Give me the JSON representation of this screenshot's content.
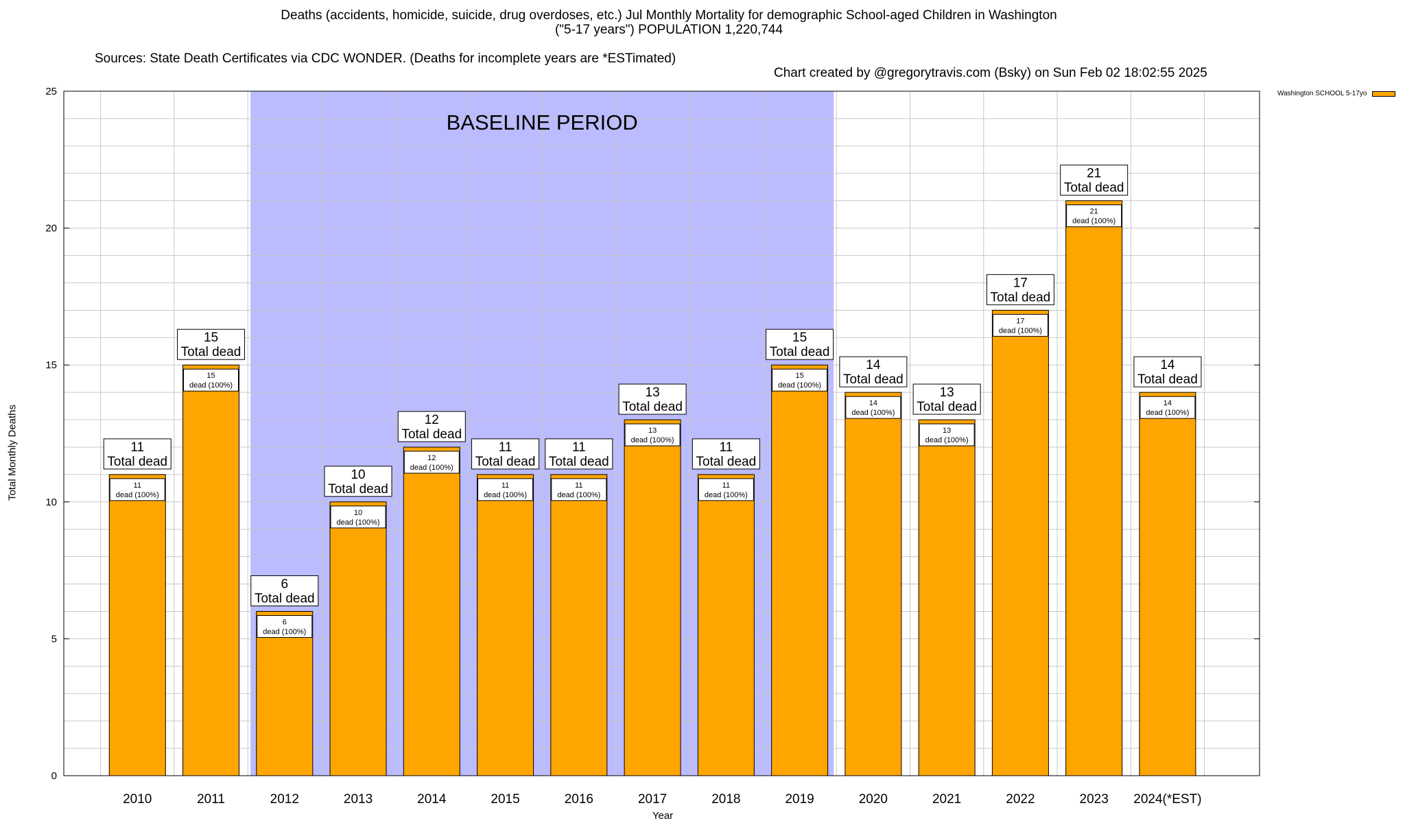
{
  "title": {
    "line1": "Deaths (accidents, homicide, suicide, drug overdoses, etc.) Jul Monthly Mortality for demographic School-aged Children in Washington",
    "line2": "(\"5-17 years\") POPULATION 1,220,744",
    "sources": "Sources: State Death Certificates via CDC WONDER. (Deaths for incomplete years are *ESTimated)",
    "credit": "Chart created by @gregorytravis.com (Bsky) on Sun Feb 02 18:02:55 2025"
  },
  "chart_data": {
    "type": "bar",
    "categories": [
      "2010",
      "2011",
      "2012",
      "2013",
      "2014",
      "2015",
      "2016",
      "2017",
      "2018",
      "2019",
      "2020",
      "2021",
      "2022",
      "2023",
      "2024(*EST)"
    ],
    "series": [
      {
        "name": "Washington SCHOOL 5-17yo",
        "values": [
          11,
          15,
          6,
          10,
          12,
          11,
          11,
          13,
          11,
          15,
          14,
          13,
          17,
          21,
          14
        ],
        "color": "#ffa500"
      }
    ],
    "bar_labels": [
      "11\ndead (100%)",
      "15\ndead (100%)",
      "6\ndead (100%)",
      "10\ndead (100%)",
      "12\ndead (100%)",
      "11\ndead (100%)",
      "11\ndead (100%)",
      "13\ndead (100%)",
      "11\ndead (100%)",
      "15\ndead (100%)",
      "14\ndead (100%)",
      "13\ndead (100%)",
      "17\ndead (100%)",
      "21\ndead (100%)",
      "14\ndead (100%)"
    ],
    "total_labels": [
      "11\nTotal dead",
      "15\nTotal dead",
      "6\nTotal dead",
      "10\nTotal dead",
      "12\nTotal dead",
      "11\nTotal dead",
      "11\nTotal dead",
      "13\nTotal dead",
      "11\nTotal dead",
      "15\nTotal dead",
      "14\nTotal dead",
      "13\nTotal dead",
      "17\nTotal dead",
      "21\nTotal dead",
      "14\nTotal dead"
    ],
    "xlabel": "Year",
    "ylabel": "Total Monthly Deaths",
    "ylim": [
      0,
      25
    ],
    "yticks": [
      0,
      5,
      10,
      15,
      20,
      25
    ],
    "grid": true,
    "legend_position": "top-right",
    "baseline_period": {
      "label": "BASELINE PERIOD",
      "start": "2012",
      "end": "2019",
      "color": "#bbbbff"
    }
  }
}
